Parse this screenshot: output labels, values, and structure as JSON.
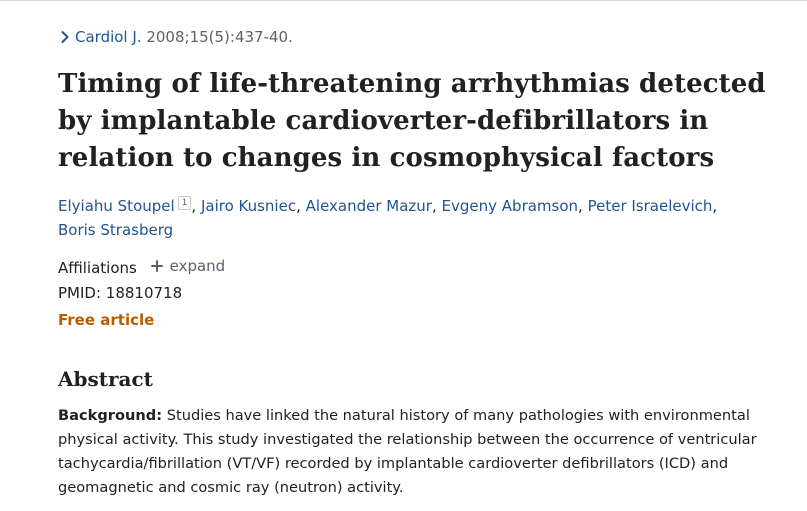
{
  "citation": {
    "journal": "Cardiol J.",
    "details": "2008;15(5):437-40."
  },
  "article": {
    "title": "Timing of life-threatening arrhythmias detected by implantable cardioverter-defibrillators in relation to changes in cosmophysical factors",
    "authors": [
      {
        "name": "Elyiahu Stoupel",
        "aff": "1"
      },
      {
        "name": "Jairo Kusniec"
      },
      {
        "name": "Alexander Mazur"
      },
      {
        "name": "Evgeny Abramson"
      },
      {
        "name": "Peter Israelevich"
      },
      {
        "name": "Boris Strasberg"
      }
    ],
    "affiliations_label": "Affiliations",
    "expand_label": "expand",
    "pmid_label": "PMID:",
    "pmid": "18810718",
    "free_label": "Free article"
  },
  "abstract": {
    "heading": "Abstract",
    "label": "Background:",
    "text": "Studies have linked the natural history of many pathologies with environmental physical activity. This study investigated the relationship between the occurrence of ventricular tachycardia/fibrillation (VT/VF) recorded by implantable cardioverter defibrillators (ICD) and geomagnetic and cosmic ray (neutron) activity."
  },
  "icons": {
    "citation": "chevron-right-icon",
    "expand": "plus-icon"
  },
  "colors": {
    "link": "#205493",
    "free": "#b85c00",
    "text": "#212121",
    "muted": "#5b616b"
  }
}
